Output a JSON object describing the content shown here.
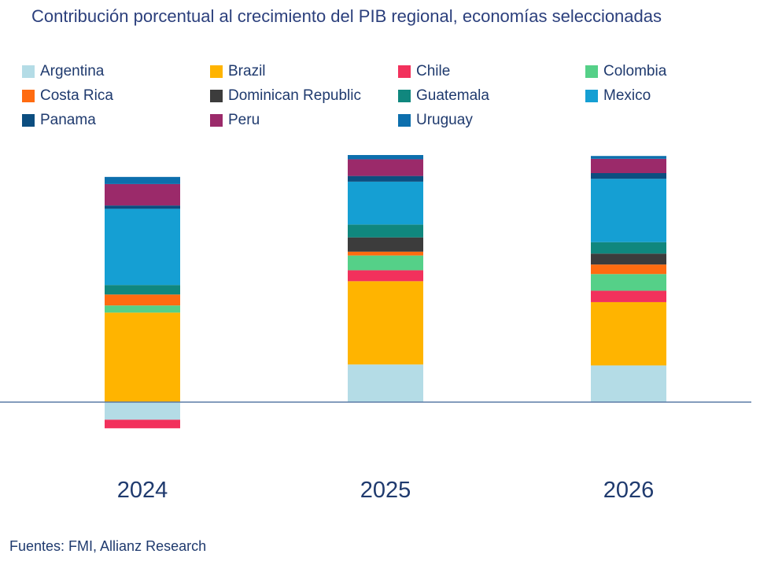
{
  "chart_data": {
    "type": "bar",
    "stacked": true,
    "title": "Contribución porcentual al crecimiento del PIB regional, economías seleccionadas",
    "xlabel": "",
    "ylabel": "",
    "categories": [
      "2024",
      "2025",
      "2026"
    ],
    "ylim": [
      -0.62,
      5.05
    ],
    "legend_position": "top",
    "grid": false,
    "series": [
      {
        "name": "Argentina",
        "color": "#b4dce6",
        "values": [
          -0.37,
          0.79,
          0.77
        ]
      },
      {
        "name": "Brazil",
        "color": "#ffb400",
        "values": [
          1.88,
          1.75,
          1.33
        ]
      },
      {
        "name": "Chile",
        "color": "#f2315c",
        "values": [
          -0.18,
          0.23,
          0.24
        ]
      },
      {
        "name": "Colombia",
        "color": "#55d088",
        "values": [
          0.15,
          0.31,
          0.35
        ]
      },
      {
        "name": "Costa Rica",
        "color": "#ff6b10",
        "values": [
          0.23,
          0.08,
          0.2
        ]
      },
      {
        "name": "Dominican Republic",
        "color": "#3c3c3c",
        "values": [
          0.0,
          0.3,
          0.23
        ]
      },
      {
        "name": "Guatemala",
        "color": "#10877e",
        "values": [
          0.2,
          0.27,
          0.24
        ]
      },
      {
        "name": "Mexico",
        "color": "#159fd3",
        "values": [
          1.6,
          0.9,
          1.33
        ]
      },
      {
        "name": "Panama",
        "color": "#0c4e80",
        "values": [
          0.07,
          0.12,
          0.12
        ]
      },
      {
        "name": "Peru",
        "color": "#9b2a6a",
        "values": [
          0.45,
          0.35,
          0.3
        ]
      },
      {
        "name": "Uruguay",
        "color": "#0d6fad",
        "values": [
          0.15,
          0.09,
          0.06
        ]
      }
    ]
  },
  "source": "Fuentes: FMI, Allianz Research"
}
